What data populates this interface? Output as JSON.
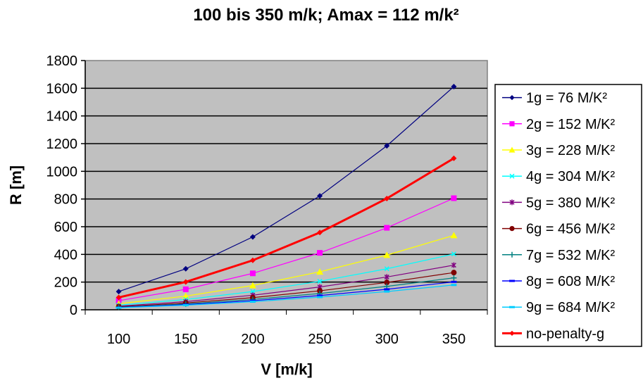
{
  "chart_data": {
    "type": "line",
    "title": "100 bis 350 m/k; Amax = 112 m/k²",
    "xlabel": "V [m/k]",
    "ylabel": "R [m]",
    "x": [
      100,
      150,
      200,
      250,
      300,
      350
    ],
    "x_tick_labels": [
      "100",
      "150",
      "200",
      "250",
      "300",
      "350"
    ],
    "ylim": [
      0,
      1800
    ],
    "y_ticks": [
      0,
      200,
      400,
      600,
      800,
      1000,
      1200,
      1400,
      1600,
      1800
    ],
    "y_tick_labels": [
      "0",
      "200",
      "400",
      "600",
      "800",
      "1000",
      "1200",
      "1400",
      "1600",
      "1800"
    ],
    "grid": "horizontal",
    "plot_background": "#c0c0c0",
    "legend_position": "right",
    "series": [
      {
        "name": "1g = 76 M/K²",
        "color": "#000080",
        "marker": "diamond",
        "values": [
          131.6,
          296.1,
          526.3,
          822.4,
          1184.2,
          1611.8
        ]
      },
      {
        "name": "2g = 152 M/K²",
        "color": "#ff00ff",
        "marker": "square",
        "values": [
          65.8,
          148.0,
          263.2,
          411.2,
          592.1,
          805.9
        ]
      },
      {
        "name": "3g = 228 M/K²",
        "color": "#ffff00",
        "marker": "triangle",
        "values": [
          43.9,
          98.7,
          175.4,
          274.1,
          394.7,
          537.3
        ]
      },
      {
        "name": "4g = 304 M/K²",
        "color": "#00ffff",
        "marker": "x",
        "values": [
          32.9,
          74.0,
          131.6,
          205.6,
          296.1,
          403.0
        ]
      },
      {
        "name": "5g = 380 M/K²",
        "color": "#800080",
        "marker": "star",
        "values": [
          26.3,
          59.2,
          105.3,
          164.5,
          236.8,
          322.4
        ]
      },
      {
        "name": "6g = 456 M/K²",
        "color": "#800000",
        "marker": "circle",
        "values": [
          21.9,
          49.3,
          87.7,
          137.1,
          197.4,
          268.6
        ]
      },
      {
        "name": "7g = 532 M/K²",
        "color": "#008080",
        "marker": "plus",
        "values": [
          18.8,
          42.3,
          75.2,
          117.5,
          169.2,
          230.3
        ]
      },
      {
        "name": "8g = 608 M/K²",
        "color": "#0000ff",
        "marker": "dash",
        "values": [
          16.4,
          37.0,
          65.8,
          102.8,
          148.0,
          201.5
        ]
      },
      {
        "name": "9g = 684 M/K²",
        "color": "#00ccff",
        "marker": "dash",
        "values": [
          14.6,
          32.9,
          58.5,
          91.4,
          131.6,
          179.1
        ]
      },
      {
        "name": "no-penalty-g",
        "color": "#ff0000",
        "marker": "diamond",
        "thick": true,
        "values": [
          89.3,
          200.9,
          357.1,
          558.0,
          803.6,
          1093.8
        ]
      }
    ]
  }
}
